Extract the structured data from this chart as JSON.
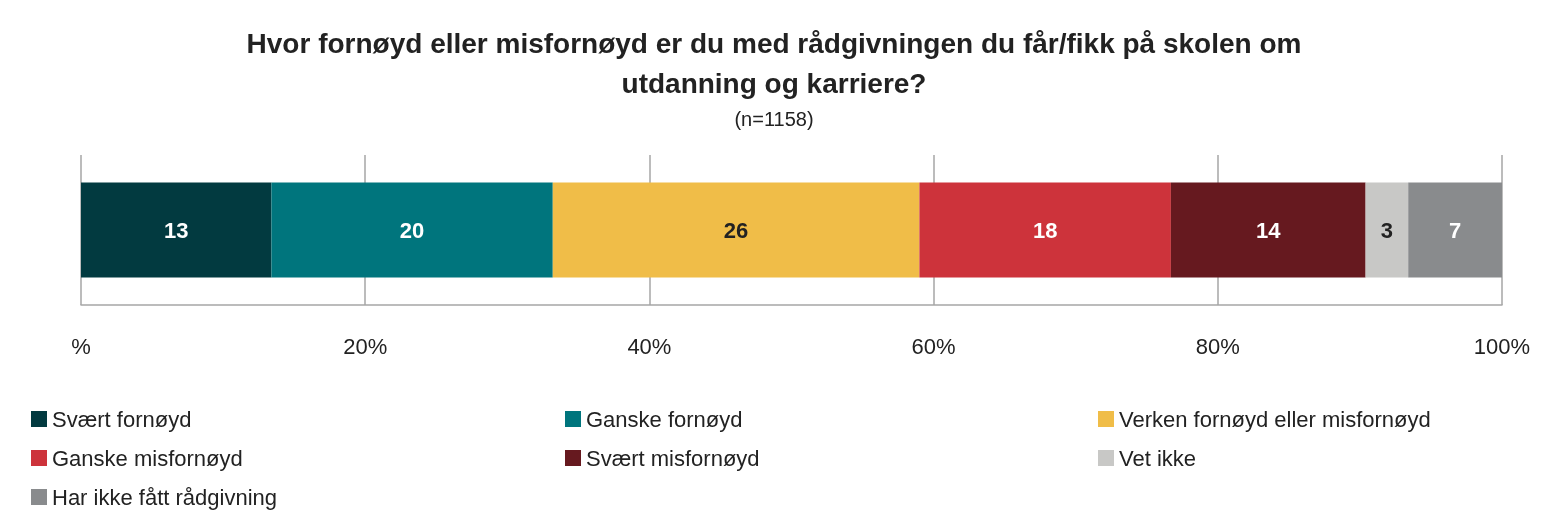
{
  "chart_data": {
    "type": "bar",
    "orientation": "horizontal",
    "stacked": true,
    "title": "Hvor fornøyd eller misfornøyd er du med rådgivningen du får/fikk på skolen om\nutdanning og karriere?",
    "subtitle": "(n=1158)",
    "categories": [
      null
    ],
    "series": [
      {
        "name": "Svært fornøyd",
        "color": "#023a40",
        "values": [
          13.4
        ],
        "value_labels": [
          "13"
        ]
      },
      {
        "name": "Ganske fornøyd",
        "color": "#00757d",
        "values": [
          19.8
        ],
        "value_labels": [
          "20"
        ]
      },
      {
        "name": "Verken fornøyd eller misfornøyd",
        "color": "#f0bd48",
        "values": [
          25.8
        ],
        "value_labels": [
          "26"
        ]
      },
      {
        "name": "Ganske misfornøyd",
        "color": "#cd333b",
        "values": [
          17.7
        ],
        "value_labels": [
          "18"
        ]
      },
      {
        "name": "Svært misfornøyd",
        "color": "#66191f",
        "values": [
          13.7
        ],
        "value_labels": [
          "14"
        ]
      },
      {
        "name": "Vet ikke",
        "color": "#c8c8c6",
        "values": [
          3.0
        ],
        "value_labels": [
          "3"
        ]
      },
      {
        "name": "Har ikke fått rådgivning",
        "color": "#898b8d",
        "values": [
          6.6
        ],
        "value_labels": [
          "7"
        ]
      }
    ],
    "xlim": [
      0,
      100
    ],
    "xticks": [
      {
        "value": 0,
        "label": "%"
      },
      {
        "value": 20,
        "label": "20%"
      },
      {
        "value": 40,
        "label": "40%"
      },
      {
        "value": 60,
        "label": "60%"
      },
      {
        "value": 80,
        "label": "80%"
      },
      {
        "value": 100,
        "label": "100%"
      }
    ],
    "grid": "x",
    "legend": "bottom"
  }
}
